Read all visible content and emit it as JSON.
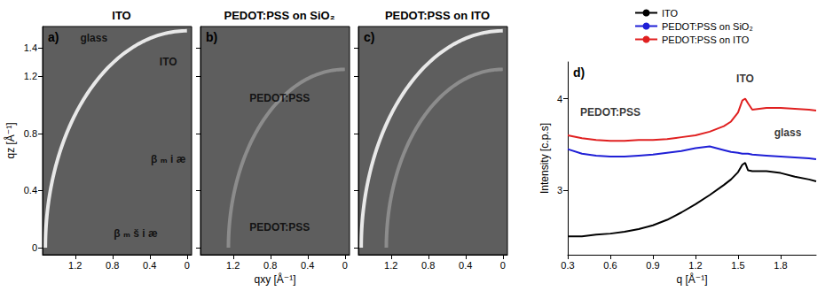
{
  "chart_data": [
    {
      "type": "scattering_image",
      "panel": "a)",
      "title": "ITO",
      "y_label": "qz [Å⁻¹]",
      "xlim": [
        -0.05,
        1.55
      ],
      "xticks": [
        0,
        0.4,
        0.8,
        1.2
      ],
      "ylim": [
        -0.05,
        1.55
      ],
      "yticks": [
        0,
        0.4,
        0.8,
        1.2,
        1.4
      ],
      "rings": [
        {
          "q": 1.52,
          "color": "#e8e8e8"
        }
      ],
      "annotations": [
        {
          "text": "glass",
          "x": 1.0,
          "y": 1.47
        },
        {
          "text": "ITO",
          "x": 0.2,
          "y": 1.3
        },
        {
          "text": "β ₘ š i æ",
          "x": 0.55,
          "y": 0.1
        },
        {
          "text": "β ₘ i æ",
          "x": 0.2,
          "y": 0.62
        }
      ]
    },
    {
      "type": "scattering_image",
      "panel": "b)",
      "title": "PEDOT:PSS on SiO₂",
      "x_label": "qxy [Å⁻¹]",
      "xlim": [
        -0.05,
        1.55
      ],
      "xticks": [
        0,
        0.4,
        0.8,
        1.2
      ],
      "ylim": [
        -0.05,
        1.55
      ],
      "yticks": [
        0,
        0.4,
        0.8,
        1.2,
        1.4
      ],
      "tick_labels": "x",
      "rings": [
        {
          "q": 1.25,
          "color": "#8c8c8c"
        }
      ],
      "annotations": [
        {
          "text": "PEDOT:PSS",
          "x": 0.7,
          "y": 1.05
        },
        {
          "text": "PEDOT:PSS",
          "x": 0.7,
          "y": 0.14
        }
      ]
    },
    {
      "type": "scattering_image",
      "panel": "c)",
      "title": "PEDOT:PSS on ITO",
      "xlim": [
        -0.05,
        1.55
      ],
      "xticks": [
        0,
        0.4,
        0.8,
        1.2
      ],
      "ylim": [
        -0.05,
        1.55
      ],
      "yticks": [
        0,
        0.4,
        0.8,
        1.2,
        1.4
      ],
      "tick_labels": "x",
      "rings": [
        {
          "q": 1.52,
          "color": "#e8e8e8"
        },
        {
          "q": 1.25,
          "color": "#8c8c8c"
        }
      ],
      "annotations": []
    },
    {
      "type": "line",
      "panel": "d)",
      "x_label": "q [Å⁻¹]",
      "y_label": "Intensity [c.p.s]",
      "xlim": [
        0.3,
        2.05
      ],
      "xticks": [
        0.3,
        0.6,
        0.9,
        1.2,
        1.5,
        1.8
      ],
      "ylim": [
        2.3,
        4.4
      ],
      "yticks": [
        3,
        4
      ],
      "legend": "top-right",
      "x": [
        0.3,
        0.4,
        0.5,
        0.6,
        0.7,
        0.8,
        0.9,
        1.0,
        1.1,
        1.2,
        1.3,
        1.4,
        1.45,
        1.5,
        1.53,
        1.55,
        1.57,
        1.6,
        1.7,
        1.8,
        1.9,
        2.0,
        2.05
      ],
      "series": [
        {
          "name": "ITO",
          "color": "#000000",
          "values": [
            2.5,
            2.5,
            2.52,
            2.53,
            2.55,
            2.58,
            2.62,
            2.68,
            2.76,
            2.85,
            2.95,
            3.06,
            3.12,
            3.2,
            3.28,
            3.3,
            3.22,
            3.21,
            3.21,
            3.19,
            3.15,
            3.12,
            3.1
          ]
        },
        {
          "name": "PEDOT:PSS on SiO₂",
          "color": "#1f1fd6",
          "values": [
            3.45,
            3.4,
            3.38,
            3.37,
            3.37,
            3.38,
            3.39,
            3.41,
            3.43,
            3.46,
            3.48,
            3.44,
            3.42,
            3.41,
            3.4,
            3.4,
            3.4,
            3.39,
            3.38,
            3.37,
            3.36,
            3.35,
            3.34
          ]
        },
        {
          "name": "PEDOT:PSS on ITO",
          "color": "#e02020",
          "values": [
            3.6,
            3.57,
            3.55,
            3.54,
            3.54,
            3.55,
            3.55,
            3.56,
            3.58,
            3.6,
            3.64,
            3.7,
            3.75,
            3.85,
            3.98,
            4.0,
            3.95,
            3.88,
            3.9,
            3.9,
            3.89,
            3.88,
            3.87
          ]
        }
      ],
      "annotations": [
        {
          "text": "PEDOT:PSS",
          "x": 0.6,
          "y": 3.85
        },
        {
          "text": "ITO",
          "x": 1.55,
          "y": 4.22
        },
        {
          "text": "glass",
          "x": 1.85,
          "y": 3.63
        }
      ]
    }
  ]
}
